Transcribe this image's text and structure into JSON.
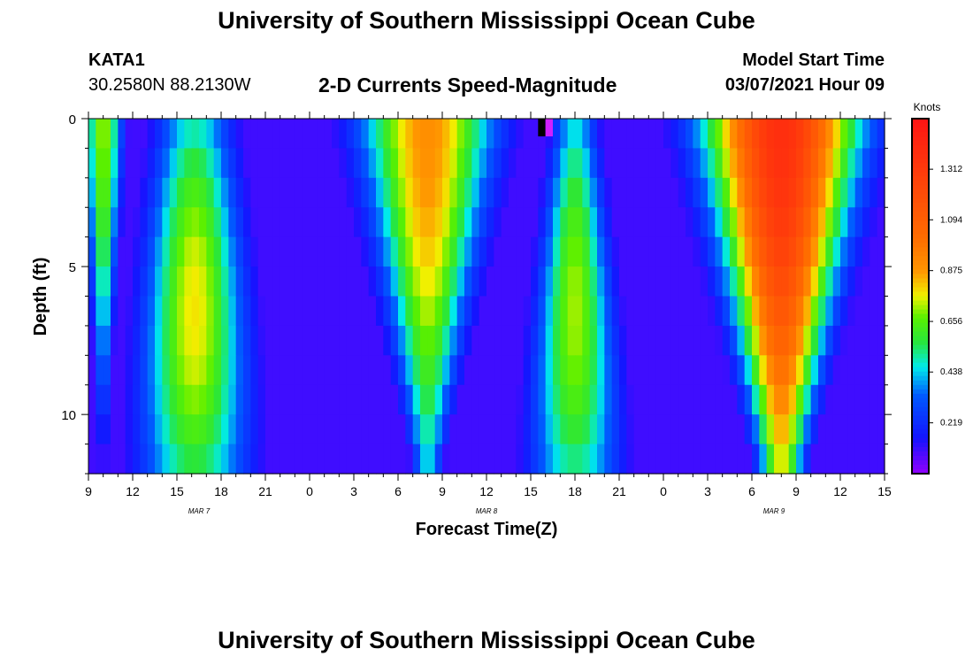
{
  "header": {
    "title": "University of Southern Mississippi Ocean Cube",
    "station_id": "KATA1",
    "coordinates": "30.2580N 88.2130W",
    "plot_title": "2-D Currents Speed-Magnitude",
    "model_start_label": "Model Start Time",
    "model_start_value": "03/07/2021 Hour 09"
  },
  "footer": {
    "title": "University of Southern Mississippi Ocean Cube"
  },
  "chart_data": {
    "type": "heatmap",
    "title": "2-D Currents Speed-Magnitude",
    "xlabel": "Forecast Time(Z)",
    "ylabel": "Depth (ft)",
    "x_range_hours": [
      0,
      54
    ],
    "ylim": [
      0,
      12
    ],
    "x_tick_labels": [
      "9",
      "12",
      "15",
      "18",
      "21",
      "0",
      "3",
      "6",
      "9",
      "12",
      "15",
      "18",
      "21",
      "0",
      "3",
      "6",
      "9",
      "12",
      "15"
    ],
    "date_labels": [
      {
        "label": "MAR 7",
        "hour": 7.5
      },
      {
        "label": "MAR 8",
        "hour": 27
      },
      {
        "label": "MAR 9",
        "hour": 46.5
      }
    ],
    "y_ticks": [
      0,
      5,
      10
    ],
    "colorbar": {
      "label": "Knots",
      "min": 0,
      "max": 1.53,
      "ticks": [
        0.219,
        0.438,
        0.656,
        0.875,
        1.094,
        1.312
      ],
      "tick_labels": [
        "0.219",
        "0.438",
        "0.656",
        "0.875",
        "1.094",
        "1.312"
      ]
    },
    "speed_model": {
      "time_step_hours": 0.5,
      "depth_step_ft": 1,
      "baseline_knots": 0.1,
      "pulses": [
        {
          "center_hour": 1,
          "surface_halfwidth": 1.3,
          "bottom_halfwidth": 0.3,
          "peak_depth_ft": 0,
          "peak_knots": 0.72,
          "depth_falloff": 10
        },
        {
          "center_hour": 7.2,
          "surface_halfwidth": 2.6,
          "bottom_halfwidth": 3.8,
          "peak_depth_ft": 6.5,
          "peak_knots": 0.78,
          "depth_falloff": 9
        },
        {
          "center_hour": 23,
          "surface_halfwidth": 4.6,
          "bottom_halfwidth": 0.9,
          "peak_depth_ft": 0,
          "peak_knots": 0.9,
          "depth_falloff": 14
        },
        {
          "center_hour": 33,
          "surface_halfwidth": 1.5,
          "bottom_halfwidth": 3.2,
          "peak_depth_ft": 6.5,
          "peak_knots": 0.72,
          "depth_falloff": 9
        },
        {
          "center_hour": 47,
          "surface_halfwidth": 5.2,
          "bottom_halfwidth": 1.4,
          "peak_depth_ft": 0,
          "peak_knots": 1.38,
          "depth_falloff": 15
        }
      ],
      "anomalies": [
        {
          "hour": 30.5,
          "depth_ft": 0,
          "color": "#000000"
        },
        {
          "hour": 31,
          "depth_ft": 0,
          "color": "#d020ff"
        }
      ]
    }
  }
}
